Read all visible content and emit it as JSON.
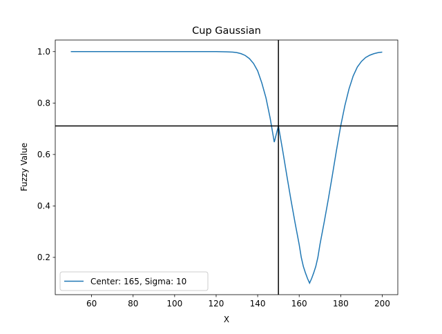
{
  "chart_data": {
    "type": "line",
    "title": "Cup Gaussian",
    "xlabel": "X",
    "ylabel": "Fuzzy Value",
    "xlim": [
      42.5,
      207.5
    ],
    "ylim": [
      0.055,
      1.045
    ],
    "xticks": [
      60,
      80,
      100,
      120,
      140,
      160,
      180,
      200
    ],
    "yticks": [
      0.2,
      0.4,
      0.6,
      0.8,
      1.0
    ],
    "ytick_labels": [
      "0.2",
      "0.4",
      "0.6",
      "0.8",
      "1.0"
    ],
    "grid": false,
    "legend_position": "lower-left",
    "series": [
      {
        "name": "Center: 165, Sigma: 10",
        "color": "#1f77b4",
        "x": [
          50,
          60,
          70,
          80,
          90,
          100,
          110,
          115,
          120,
          125,
          128,
          130,
          132,
          134,
          136,
          138,
          140,
          142,
          144,
          146,
          148,
          150,
          152,
          154,
          156,
          158,
          160,
          161,
          162,
          163,
          164,
          165,
          166,
          167,
          168,
          169,
          170,
          172,
          174,
          176,
          178,
          180,
          182,
          184,
          186,
          188,
          190,
          192,
          194,
          196,
          198,
          200
        ],
        "y": [
          1.0,
          1.0,
          1.0,
          1.0,
          1.0,
          1.0,
          1.0,
          1.0,
          1.0,
          0.999,
          0.998,
          0.996,
          0.992,
          0.985,
          0.973,
          0.954,
          0.925,
          0.878,
          0.82,
          0.742,
          0.648,
          0.711,
          0.618,
          0.52,
          0.425,
          0.335,
          0.25,
          0.2,
          0.165,
          0.14,
          0.118,
          0.1,
          0.118,
          0.14,
          0.165,
          0.2,
          0.25,
          0.335,
          0.425,
          0.52,
          0.618,
          0.711,
          0.79,
          0.855,
          0.905,
          0.94,
          0.962,
          0.977,
          0.986,
          0.992,
          0.996,
          0.998
        ]
      }
    ],
    "reference_lines": {
      "vertical_x": 150,
      "horizontal_y": 0.711,
      "color": "#000000"
    }
  }
}
